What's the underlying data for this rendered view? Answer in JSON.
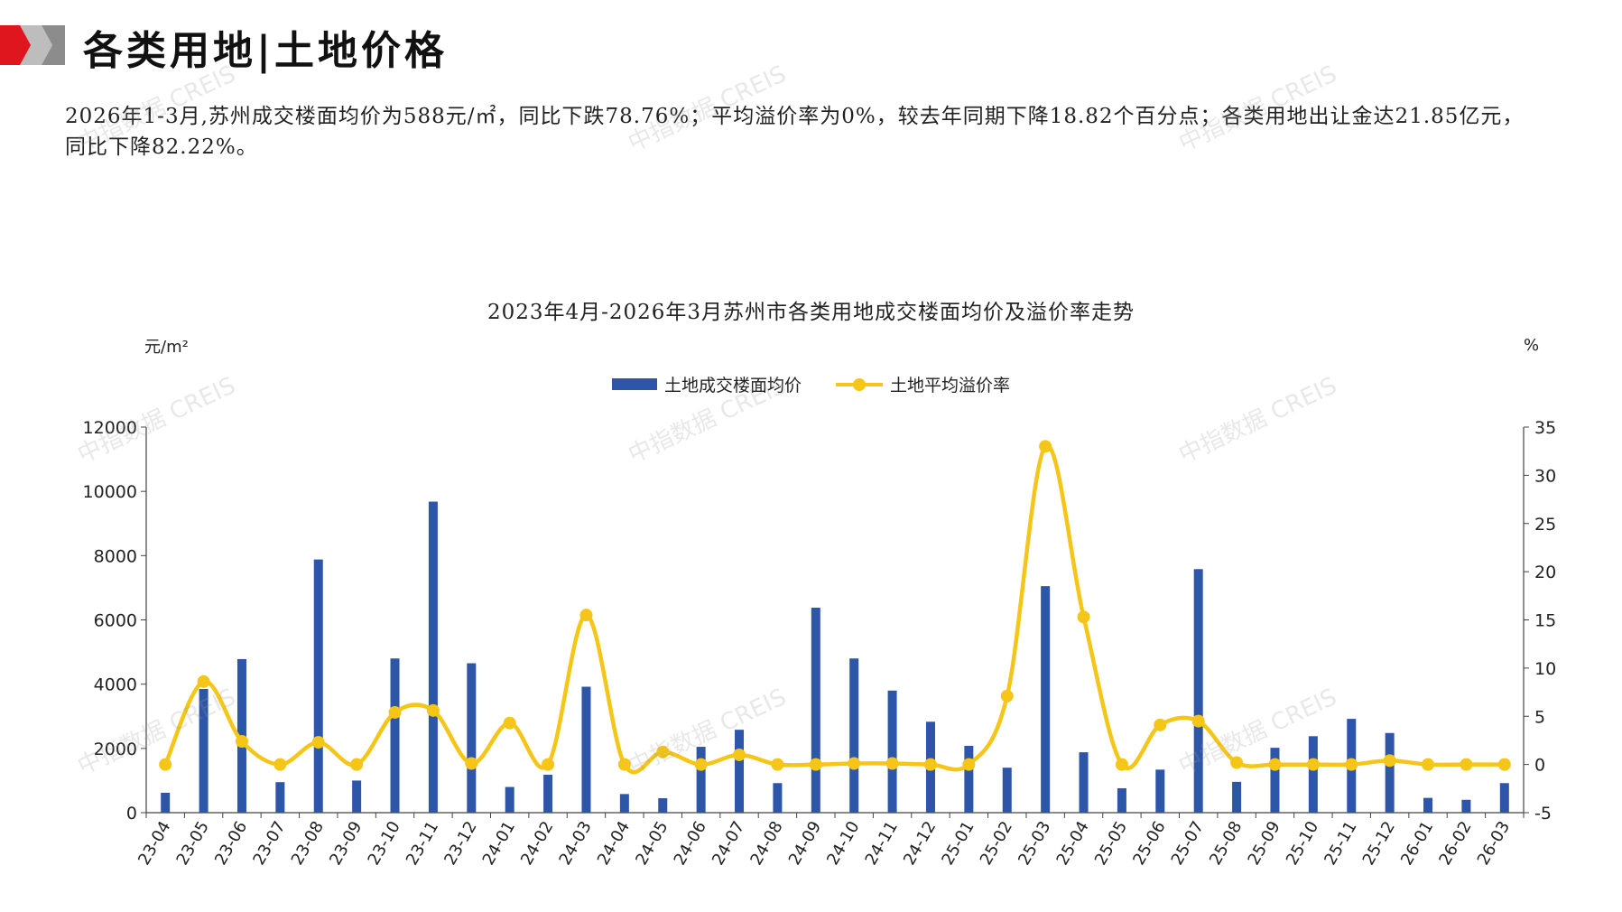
{
  "header": {
    "title": "各类用地|土地价格",
    "colors": {
      "accent_red": "#E0161E",
      "accent_gray": "#8C8C8C"
    }
  },
  "summary": "2026年1-3月,苏州成交楼面均价为588元/㎡，同比下跌78.76%；平均溢价率为0%，较去年同期下降18.82个百分点；各类用地出让金达21.85亿元，同比下降82.22%。",
  "watermark": {
    "text": "中指数据 CREIS"
  },
  "chart_data": {
    "type": "bar+line",
    "title": "2023年4月-2026年3月苏州市各类用地成交楼面均价及溢价率走势",
    "left_unit": "元/m²",
    "right_unit": "%",
    "ylim_left": [
      0,
      12000
    ],
    "yticks_left": [
      0,
      2000,
      4000,
      6000,
      8000,
      10000,
      12000
    ],
    "ylim_right": [
      -5,
      35
    ],
    "yticks_right": [
      -5,
      0,
      5,
      10,
      15,
      20,
      25,
      30,
      35
    ],
    "legend_position": "top-center",
    "categories": [
      "23-04",
      "23-05",
      "23-06",
      "23-07",
      "23-08",
      "23-09",
      "23-10",
      "23-11",
      "23-12",
      "24-01",
      "24-02",
      "24-03",
      "24-04",
      "24-05",
      "24-06",
      "24-07",
      "24-08",
      "24-09",
      "24-10",
      "24-11",
      "24-12",
      "25-01",
      "25-02",
      "25-03",
      "25-04",
      "25-05",
      "25-06",
      "25-07",
      "25-08",
      "25-09",
      "25-10",
      "25-11",
      "25-12",
      "26-01",
      "26-02",
      "26-03"
    ],
    "series": [
      {
        "name": "土地成交楼面均价",
        "kind": "bar",
        "axis": "left",
        "color": "#2E56A8",
        "values": [
          620,
          3850,
          4780,
          950,
          7880,
          1000,
          4800,
          9680,
          4650,
          800,
          1180,
          3920,
          580,
          450,
          2050,
          2580,
          920,
          6380,
          4800,
          3800,
          2830,
          2080,
          1400,
          7050,
          1880,
          760,
          1340,
          7580,
          960,
          2020,
          2380,
          2920,
          2480,
          460,
          400,
          920
        ]
      },
      {
        "name": "土地平均溢价率",
        "kind": "line",
        "axis": "right",
        "color": "#F5C518",
        "values": [
          0.0,
          8.6,
          2.4,
          0.0,
          2.3,
          0.0,
          5.4,
          5.6,
          0.1,
          4.3,
          0.0,
          15.5,
          0.0,
          1.3,
          0.0,
          1.0,
          0.0,
          0.0,
          0.1,
          0.1,
          0.0,
          0.0,
          7.1,
          33.0,
          15.3,
          0.0,
          4.1,
          4.5,
          0.2,
          0.0,
          0.0,
          0.0,
          0.4,
          0.0,
          0.0,
          0.0
        ]
      }
    ]
  }
}
